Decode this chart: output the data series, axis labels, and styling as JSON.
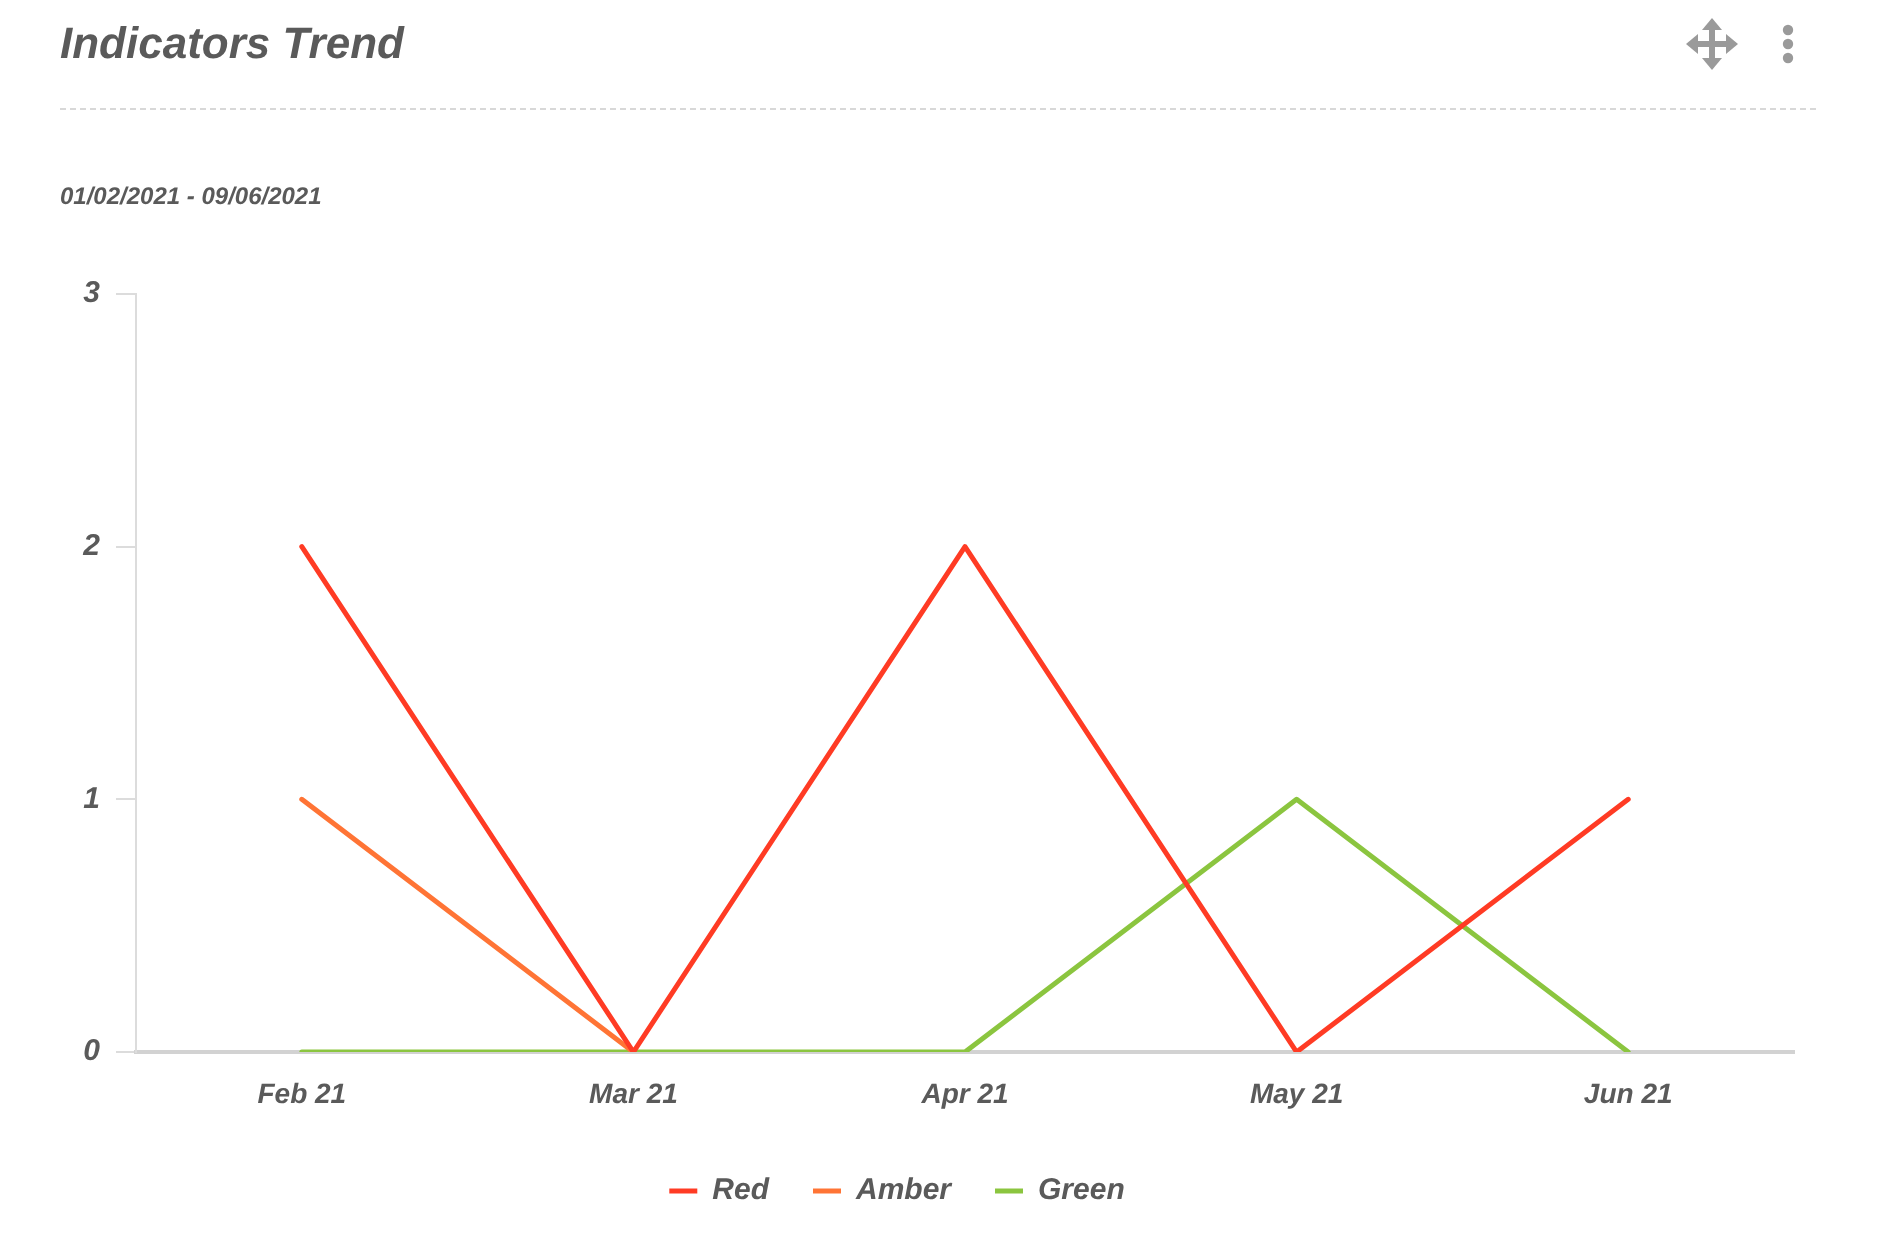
{
  "chart_data": {
    "type": "line",
    "title": "Indicators Trend",
    "subtitle": "01/02/2021 - 09/06/2021",
    "categories": [
      "Feb 21",
      "Mar 21",
      "Apr 21",
      "May 21",
      "Jun 21"
    ],
    "series": [
      {
        "name": "Red",
        "color": "#ff3b24",
        "values": [
          2,
          0,
          2,
          0,
          1
        ]
      },
      {
        "name": "Amber",
        "color": "#ff7435",
        "values": [
          1,
          0,
          null,
          null,
          null
        ]
      },
      {
        "name": "Green",
        "color": "#8bc53f",
        "values": [
          0,
          0,
          0,
          1,
          0
        ]
      }
    ],
    "ylim": [
      0,
      3
    ],
    "yticks": [
      0,
      1,
      2,
      3
    ],
    "grid": false,
    "legend": "bottom",
    "marker": "none",
    "line_style": "solid"
  }
}
